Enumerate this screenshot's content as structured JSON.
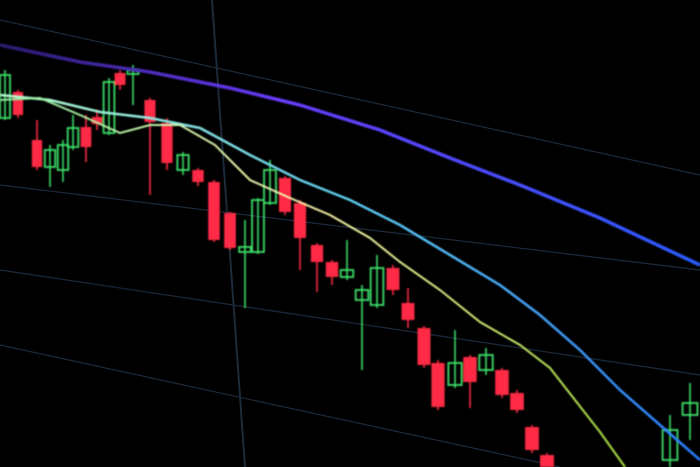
{
  "scene": {
    "colors": {
      "background": "#000000",
      "bullish": "#3ee06a",
      "bearish": "#ff2a44",
      "slow_ma": "#5a3cff",
      "mid_ma": "#4fc6f0",
      "fast_ma": "#e8f0a0",
      "grid": "#1c2a3a"
    }
  }
}
